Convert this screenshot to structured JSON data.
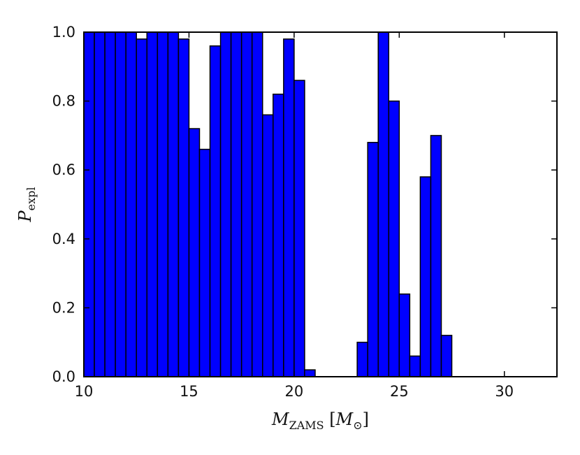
{
  "chart_data": {
    "type": "bar",
    "bin_width": 0.5,
    "x": [
      10.0,
      10.5,
      11.0,
      11.5,
      12.0,
      12.5,
      13.0,
      13.5,
      14.0,
      14.5,
      15.0,
      15.5,
      16.0,
      16.5,
      17.0,
      17.5,
      18.0,
      18.5,
      19.0,
      19.5,
      20.0,
      20.5,
      21.0,
      21.5,
      22.0,
      22.5,
      23.0,
      23.5,
      24.0,
      24.5,
      25.0,
      25.5,
      26.0,
      26.5,
      27.0
    ],
    "values": [
      1.0,
      1.0,
      1.0,
      1.0,
      1.0,
      0.98,
      1.0,
      1.0,
      1.0,
      0.98,
      0.72,
      0.66,
      0.96,
      1.0,
      1.0,
      1.0,
      1.0,
      0.76,
      0.82,
      0.98,
      0.86,
      0.02,
      0.0,
      0.0,
      0.0,
      0.0,
      0.1,
      0.68,
      1.0,
      0.8,
      0.24,
      0.06,
      0.58,
      0.7,
      0.12
    ],
    "bar_color": "#0000ff",
    "edge_color": "#000000",
    "xlim": [
      10,
      32.5
    ],
    "ylim": [
      0,
      1.0
    ],
    "x_ticks": [
      10,
      15,
      20,
      25,
      30
    ],
    "x_tick_labels": [
      "10",
      "15",
      "20",
      "25",
      "30"
    ],
    "y_ticks": [
      0.0,
      0.2,
      0.4,
      0.6,
      0.8,
      1.0
    ],
    "y_tick_labels": [
      "0.0",
      "0.2",
      "0.4",
      "0.6",
      "0.8",
      "1.0"
    ],
    "xlabel": {
      "main": "M",
      "sub": "ZAMS",
      "unit_main": "M",
      "unit_sub": "⊙"
    },
    "ylabel": {
      "main": "P",
      "sub": "expl"
    },
    "grid": false,
    "legend": null
  }
}
